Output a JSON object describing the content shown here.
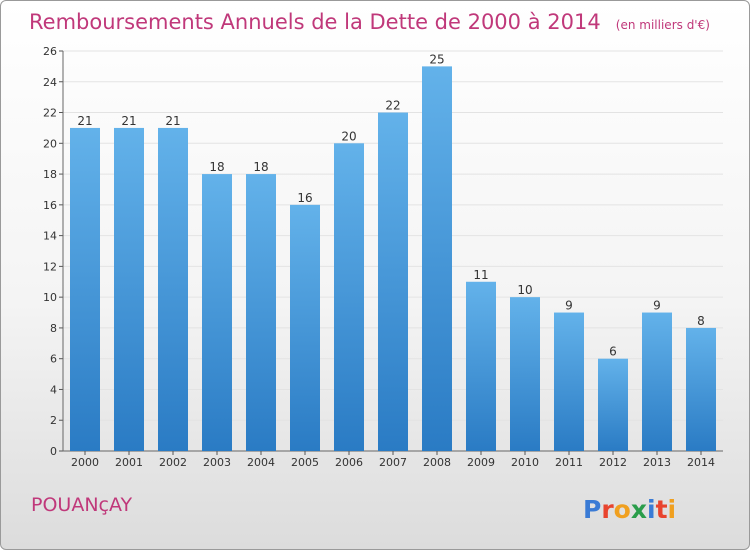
{
  "title": "Remboursements Annuels de la Dette de 2000 à 2014",
  "unit": "(en milliers d'€)",
  "commune": "POUANçAY",
  "logo": {
    "text": "Proxiti",
    "letter_colors": [
      "#3a7bd5",
      "#e8442e",
      "#f0a020",
      "#2a9d4a",
      "#3a7bd5",
      "#e8442e",
      "#f0a020"
    ]
  },
  "colors": {
    "bar_top": "#63b2ea",
    "bar_bottom": "#2a7bc4",
    "title": "#c0387a",
    "grid": "#e3e3e3"
  },
  "chart_data": {
    "type": "bar",
    "categories": [
      "2000",
      "2001",
      "2002",
      "2003",
      "2004",
      "2005",
      "2006",
      "2007",
      "2008",
      "2009",
      "2010",
      "2011",
      "2012",
      "2013",
      "2014"
    ],
    "values": [
      21,
      21,
      21,
      18,
      18,
      16,
      20,
      22,
      25,
      11,
      10,
      9,
      6,
      9,
      8
    ],
    "title": "Remboursements Annuels de la Dette de 2000 à 2014",
    "ylim": [
      0,
      26
    ],
    "yticks": [
      0,
      2,
      4,
      6,
      8,
      10,
      12,
      14,
      16,
      18,
      20,
      22,
      24,
      26
    ],
    "grid": true,
    "data_labels": true
  }
}
